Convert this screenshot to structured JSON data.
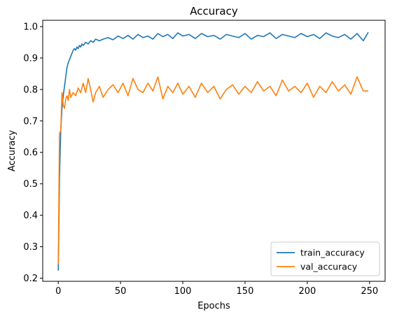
{
  "chart_data": {
    "type": "line",
    "title": "Accuracy",
    "xlabel": "Epochs",
    "ylabel": "Accuracy",
    "xlim": [
      -12.5,
      262.5
    ],
    "ylim": [
      0.19,
      1.02
    ],
    "xticks": [
      0,
      50,
      100,
      150,
      200,
      250
    ],
    "yticks": [
      0.2,
      0.3,
      0.4,
      0.5,
      0.6,
      0.7,
      0.8,
      0.9,
      1.0
    ],
    "grid": false,
    "legend_position": "bottom-right",
    "series": [
      {
        "name": "train_accuracy",
        "color": "#1f77b4",
        "x": [
          0,
          1,
          2,
          3,
          4,
          5,
          6,
          7,
          8,
          9,
          10,
          11,
          12,
          13,
          14,
          15,
          16,
          17,
          18,
          19,
          20,
          22,
          24,
          26,
          28,
          30,
          33,
          36,
          40,
          44,
          48,
          52,
          56,
          60,
          64,
          68,
          72,
          76,
          80,
          84,
          88,
          92,
          96,
          100,
          105,
          110,
          115,
          120,
          125,
          130,
          135,
          140,
          145,
          150,
          155,
          160,
          165,
          170,
          175,
          180,
          185,
          190,
          195,
          200,
          205,
          210,
          215,
          220,
          225,
          230,
          235,
          240,
          245,
          249
        ],
        "values": [
          0.224,
          0.52,
          0.67,
          0.74,
          0.78,
          0.81,
          0.84,
          0.87,
          0.885,
          0.895,
          0.905,
          0.915,
          0.925,
          0.93,
          0.925,
          0.935,
          0.93,
          0.94,
          0.935,
          0.945,
          0.94,
          0.95,
          0.945,
          0.955,
          0.95,
          0.96,
          0.955,
          0.96,
          0.965,
          0.958,
          0.97,
          0.962,
          0.972,
          0.96,
          0.975,
          0.965,
          0.97,
          0.96,
          0.978,
          0.968,
          0.975,
          0.962,
          0.98,
          0.97,
          0.975,
          0.962,
          0.978,
          0.968,
          0.972,
          0.96,
          0.975,
          0.97,
          0.965,
          0.978,
          0.96,
          0.972,
          0.968,
          0.98,
          0.962,
          0.975,
          0.97,
          0.965,
          0.978,
          0.968,
          0.975,
          0.962,
          0.98,
          0.97,
          0.965,
          0.975,
          0.96,
          0.978,
          0.955,
          0.982
        ]
      },
      {
        "name": "val_accuracy",
        "color": "#ff7f0e",
        "x": [
          0,
          1,
          2,
          3,
          4,
          5,
          6,
          7,
          8,
          9,
          10,
          12,
          14,
          16,
          18,
          20,
          22,
          24,
          26,
          28,
          30,
          33,
          36,
          40,
          44,
          48,
          52,
          56,
          60,
          64,
          68,
          72,
          76,
          80,
          84,
          88,
          92,
          96,
          100,
          105,
          110,
          115,
          120,
          125,
          130,
          135,
          140,
          145,
          150,
          155,
          160,
          165,
          170,
          175,
          180,
          185,
          190,
          195,
          200,
          205,
          210,
          215,
          220,
          225,
          230,
          235,
          240,
          245,
          249
        ],
        "values": [
          0.245,
          0.66,
          0.67,
          0.79,
          0.75,
          0.74,
          0.77,
          0.78,
          0.765,
          0.8,
          0.775,
          0.79,
          0.78,
          0.805,
          0.79,
          0.82,
          0.79,
          0.835,
          0.8,
          0.76,
          0.79,
          0.81,
          0.775,
          0.8,
          0.815,
          0.79,
          0.82,
          0.78,
          0.835,
          0.8,
          0.79,
          0.82,
          0.795,
          0.84,
          0.77,
          0.81,
          0.79,
          0.82,
          0.785,
          0.81,
          0.775,
          0.82,
          0.79,
          0.81,
          0.77,
          0.8,
          0.815,
          0.785,
          0.81,
          0.79,
          0.825,
          0.795,
          0.81,
          0.78,
          0.83,
          0.795,
          0.81,
          0.79,
          0.82,
          0.775,
          0.81,
          0.79,
          0.825,
          0.795,
          0.815,
          0.785,
          0.84,
          0.795,
          0.795
        ]
      }
    ]
  }
}
